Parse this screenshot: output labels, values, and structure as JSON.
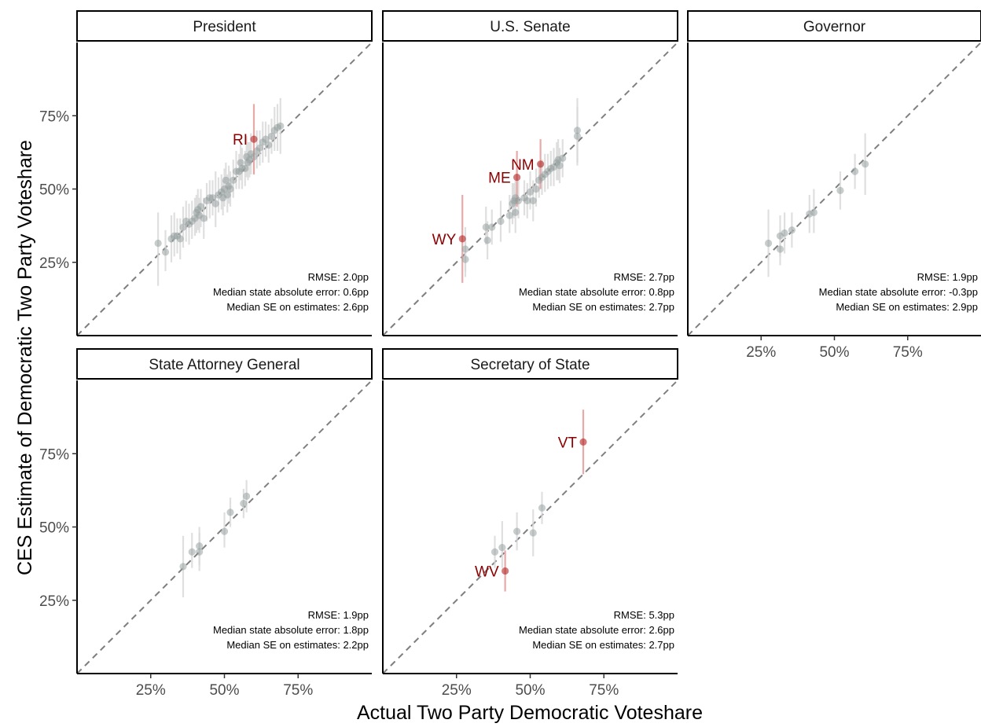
{
  "chart_data": {
    "type": "scatter",
    "xlabel": "Actual Two Party Democratic Voteshare",
    "ylabel": "CES Estimate of Democratic Two Party Voteshare",
    "xlim": [
      0,
      100
    ],
    "ylim": [
      0,
      100
    ],
    "ticks": [
      25,
      50,
      75
    ],
    "tick_labels": [
      "25%",
      "50%",
      "75%"
    ],
    "diagonal": "y = x dashed reference line",
    "colors": {
      "normal": "#909a9a",
      "outlier": "#b22222",
      "outlier_label": "#8b0000",
      "bar": "#d9d9d9",
      "outlier_bar": "#e5a0a0"
    },
    "panels": [
      {
        "title": "President",
        "annotation": [
          "RMSE: 2.0pp",
          "Median state absolute error:  0.6pp",
          "Median SE on estimates: 2.6pp"
        ],
        "points": [
          {
            "x": 27.5,
            "y": 31.5,
            "lo": 17,
            "hi": 42
          },
          {
            "x": 30,
            "y": 28.5,
            "lo": 22,
            "hi": 36
          },
          {
            "x": 32,
            "y": 33,
            "lo": 25,
            "hi": 41
          },
          {
            "x": 33,
            "y": 34,
            "lo": 27,
            "hi": 42
          },
          {
            "x": 34,
            "y": 34,
            "lo": 28,
            "hi": 40
          },
          {
            "x": 35,
            "y": 33,
            "lo": 26,
            "hi": 40
          },
          {
            "x": 36,
            "y": 37,
            "lo": 30,
            "hi": 44
          },
          {
            "x": 37,
            "y": 39,
            "lo": 32,
            "hi": 46
          },
          {
            "x": 38,
            "y": 38,
            "lo": 31,
            "hi": 45
          },
          {
            "x": 39,
            "y": 39,
            "lo": 33,
            "hi": 46
          },
          {
            "x": 40,
            "y": 40,
            "lo": 34,
            "hi": 47
          },
          {
            "x": 40.5,
            "y": 42,
            "lo": 35,
            "hi": 48
          },
          {
            "x": 41,
            "y": 43,
            "lo": 36,
            "hi": 50
          },
          {
            "x": 41.5,
            "y": 41,
            "lo": 35,
            "hi": 47
          },
          {
            "x": 42,
            "y": 44,
            "lo": 37,
            "hi": 50
          },
          {
            "x": 43,
            "y": 40,
            "lo": 33,
            "hi": 47
          },
          {
            "x": 44,
            "y": 46,
            "lo": 39,
            "hi": 52
          },
          {
            "x": 45,
            "y": 47,
            "lo": 40,
            "hi": 53
          },
          {
            "x": 46,
            "y": 47,
            "lo": 41,
            "hi": 53
          },
          {
            "x": 47,
            "y": 45,
            "lo": 37,
            "hi": 56
          },
          {
            "x": 48,
            "y": 48,
            "lo": 42,
            "hi": 54
          },
          {
            "x": 49,
            "y": 49,
            "lo": 43,
            "hi": 55
          },
          {
            "x": 49.5,
            "y": 47,
            "lo": 41,
            "hi": 53
          },
          {
            "x": 50,
            "y": 50,
            "lo": 44,
            "hi": 57
          },
          {
            "x": 50.5,
            "y": 53,
            "lo": 47,
            "hi": 59
          },
          {
            "x": 51,
            "y": 48,
            "lo": 42,
            "hi": 55
          },
          {
            "x": 51.5,
            "y": 51,
            "lo": 45,
            "hi": 58
          },
          {
            "x": 52,
            "y": 50,
            "lo": 44,
            "hi": 56
          },
          {
            "x": 53,
            "y": 53,
            "lo": 47,
            "hi": 60
          },
          {
            "x": 54,
            "y": 56,
            "lo": 50,
            "hi": 63
          },
          {
            "x": 55,
            "y": 56,
            "lo": 50,
            "hi": 62
          },
          {
            "x": 55.5,
            "y": 59,
            "lo": 53,
            "hi": 66
          },
          {
            "x": 56,
            "y": 57,
            "lo": 50,
            "hi": 64
          },
          {
            "x": 57,
            "y": 57,
            "lo": 51,
            "hi": 63
          },
          {
            "x": 57.5,
            "y": 61,
            "lo": 54,
            "hi": 68
          },
          {
            "x": 58,
            "y": 59,
            "lo": 53,
            "hi": 66
          },
          {
            "x": 58.5,
            "y": 60,
            "lo": 54,
            "hi": 66
          },
          {
            "x": 59,
            "y": 62,
            "lo": 55,
            "hi": 69
          },
          {
            "x": 60,
            "y": 61,
            "lo": 55,
            "hi": 67
          },
          {
            "x": 61,
            "y": 63,
            "lo": 57,
            "hi": 70
          },
          {
            "x": 62,
            "y": 64,
            "lo": 58,
            "hi": 70
          },
          {
            "x": 63,
            "y": 66,
            "lo": 59,
            "hi": 73
          },
          {
            "x": 64,
            "y": 67,
            "lo": 61,
            "hi": 73
          },
          {
            "x": 65,
            "y": 65,
            "lo": 59,
            "hi": 72
          },
          {
            "x": 66,
            "y": 68,
            "lo": 62,
            "hi": 74
          },
          {
            "x": 67,
            "y": 70,
            "lo": 63,
            "hi": 78
          },
          {
            "x": 68,
            "y": 71,
            "lo": 63,
            "hi": 79
          },
          {
            "x": 69,
            "y": 71.5,
            "lo": 62,
            "hi": 81
          },
          {
            "x": 60,
            "y": 67,
            "lo": 55,
            "hi": 79,
            "outlier": true,
            "label": "RI"
          }
        ]
      },
      {
        "title": "U.S. Senate",
        "annotation": [
          "RMSE: 2.7pp",
          "Median state absolute error:  0.8pp",
          "Median SE on estimates: 2.7pp"
        ],
        "points": [
          {
            "x": 27,
            "y": 33,
            "lo": 18,
            "hi": 48,
            "outlier": true,
            "label": "WY"
          },
          {
            "x": 28,
            "y": 29.5,
            "lo": 22,
            "hi": 37
          },
          {
            "x": 28,
            "y": 26,
            "lo": 20,
            "hi": 32
          },
          {
            "x": 35,
            "y": 37,
            "lo": 31,
            "hi": 44
          },
          {
            "x": 35.5,
            "y": 32.5,
            "lo": 26,
            "hi": 39
          },
          {
            "x": 37,
            "y": 37,
            "lo": 31,
            "hi": 43
          },
          {
            "x": 40,
            "y": 39,
            "lo": 32,
            "hi": 46
          },
          {
            "x": 43,
            "y": 41,
            "lo": 35,
            "hi": 48
          },
          {
            "x": 44,
            "y": 45,
            "lo": 38,
            "hi": 52
          },
          {
            "x": 44.5,
            "y": 46,
            "lo": 40,
            "hi": 52
          },
          {
            "x": 45,
            "y": 47,
            "lo": 41,
            "hi": 53
          },
          {
            "x": 45,
            "y": 42,
            "lo": 35,
            "hi": 49
          },
          {
            "x": 46,
            "y": 46,
            "lo": 40,
            "hi": 53
          },
          {
            "x": 48,
            "y": 47,
            "lo": 41,
            "hi": 53
          },
          {
            "x": 49,
            "y": 46,
            "lo": 40,
            "hi": 52
          },
          {
            "x": 50,
            "y": 49,
            "lo": 43,
            "hi": 56
          },
          {
            "x": 51,
            "y": 46,
            "lo": 39,
            "hi": 53
          },
          {
            "x": 52,
            "y": 50,
            "lo": 44,
            "hi": 57
          },
          {
            "x": 53,
            "y": 53,
            "lo": 47,
            "hi": 59
          },
          {
            "x": 54,
            "y": 54,
            "lo": 48,
            "hi": 60
          },
          {
            "x": 55,
            "y": 55,
            "lo": 49,
            "hi": 62
          },
          {
            "x": 56,
            "y": 56,
            "lo": 50,
            "hi": 62
          },
          {
            "x": 57,
            "y": 57,
            "lo": 51,
            "hi": 63
          },
          {
            "x": 58,
            "y": 57.5,
            "lo": 51,
            "hi": 64
          },
          {
            "x": 59,
            "y": 59,
            "lo": 53,
            "hi": 66
          },
          {
            "x": 59.5,
            "y": 60,
            "lo": 53,
            "hi": 67
          },
          {
            "x": 60,
            "y": 58,
            "lo": 52,
            "hi": 64
          },
          {
            "x": 61,
            "y": 60.5,
            "lo": 54,
            "hi": 67
          },
          {
            "x": 66,
            "y": 68,
            "lo": 58,
            "hi": 78
          },
          {
            "x": 66,
            "y": 70,
            "lo": 59,
            "hi": 81
          },
          {
            "x": 45.5,
            "y": 54,
            "lo": 44,
            "hi": 63,
            "outlier": true,
            "label": "ME"
          },
          {
            "x": 53.5,
            "y": 58.5,
            "lo": 50,
            "hi": 67,
            "outlier": true,
            "label": "NM"
          }
        ]
      },
      {
        "title": "Governor",
        "annotation": [
          "RMSE: 1.9pp",
          "Median state absolute error: -0.3pp",
          "Median SE on estimates: 2.9pp"
        ],
        "points": [
          {
            "x": 27.5,
            "y": 31.5,
            "lo": 20,
            "hi": 43
          },
          {
            "x": 31.5,
            "y": 29.5,
            "lo": 24,
            "hi": 36
          },
          {
            "x": 31.5,
            "y": 34,
            "lo": 27,
            "hi": 41
          },
          {
            "x": 33,
            "y": 35,
            "lo": 28,
            "hi": 42
          },
          {
            "x": 35.5,
            "y": 36,
            "lo": 30,
            "hi": 42
          },
          {
            "x": 41.5,
            "y": 41.5,
            "lo": 35,
            "hi": 48
          },
          {
            "x": 43,
            "y": 42,
            "lo": 35,
            "hi": 50
          },
          {
            "x": 52,
            "y": 49.5,
            "lo": 43,
            "hi": 56
          },
          {
            "x": 57,
            "y": 56,
            "lo": 50,
            "hi": 62
          },
          {
            "x": 60.5,
            "y": 58.5,
            "lo": 48,
            "hi": 69
          }
        ]
      },
      {
        "title": "State Attorney General",
        "annotation": [
          "RMSE: 1.9pp",
          "Median state absolute error:  1.8pp",
          "Median SE on estimates: 2.2pp"
        ],
        "points": [
          {
            "x": 36,
            "y": 36.5,
            "lo": 26,
            "hi": 47
          },
          {
            "x": 39,
            "y": 41.5,
            "lo": 36,
            "hi": 48
          },
          {
            "x": 41.5,
            "y": 43.5,
            "lo": 37,
            "hi": 50
          },
          {
            "x": 41.5,
            "y": 41.5,
            "lo": 35,
            "hi": 48
          },
          {
            "x": 50,
            "y": 48.5,
            "lo": 43,
            "hi": 55
          },
          {
            "x": 52,
            "y": 55,
            "lo": 50,
            "hi": 60
          },
          {
            "x": 56.5,
            "y": 58,
            "lo": 53,
            "hi": 63
          },
          {
            "x": 57.5,
            "y": 60.5,
            "lo": 55,
            "hi": 66
          }
        ]
      },
      {
        "title": "Secretary of State",
        "annotation": [
          "RMSE: 5.3pp",
          "Median state absolute error:  2.6pp",
          "Median SE on estimates: 2.7pp"
        ],
        "points": [
          {
            "x": 38,
            "y": 41.5,
            "lo": 36,
            "hi": 47
          },
          {
            "x": 40.5,
            "y": 43,
            "lo": 36,
            "hi": 52
          },
          {
            "x": 45.5,
            "y": 48.5,
            "lo": 42,
            "hi": 55
          },
          {
            "x": 51,
            "y": 48,
            "lo": 40,
            "hi": 56
          },
          {
            "x": 54,
            "y": 56.5,
            "lo": 51,
            "hi": 62
          },
          {
            "x": 41.5,
            "y": 35,
            "lo": 28,
            "hi": 42,
            "outlier": true,
            "label": "WV"
          },
          {
            "x": 68,
            "y": 79,
            "lo": 68,
            "hi": 90,
            "outlier": true,
            "label": "VT"
          }
        ]
      }
    ]
  }
}
